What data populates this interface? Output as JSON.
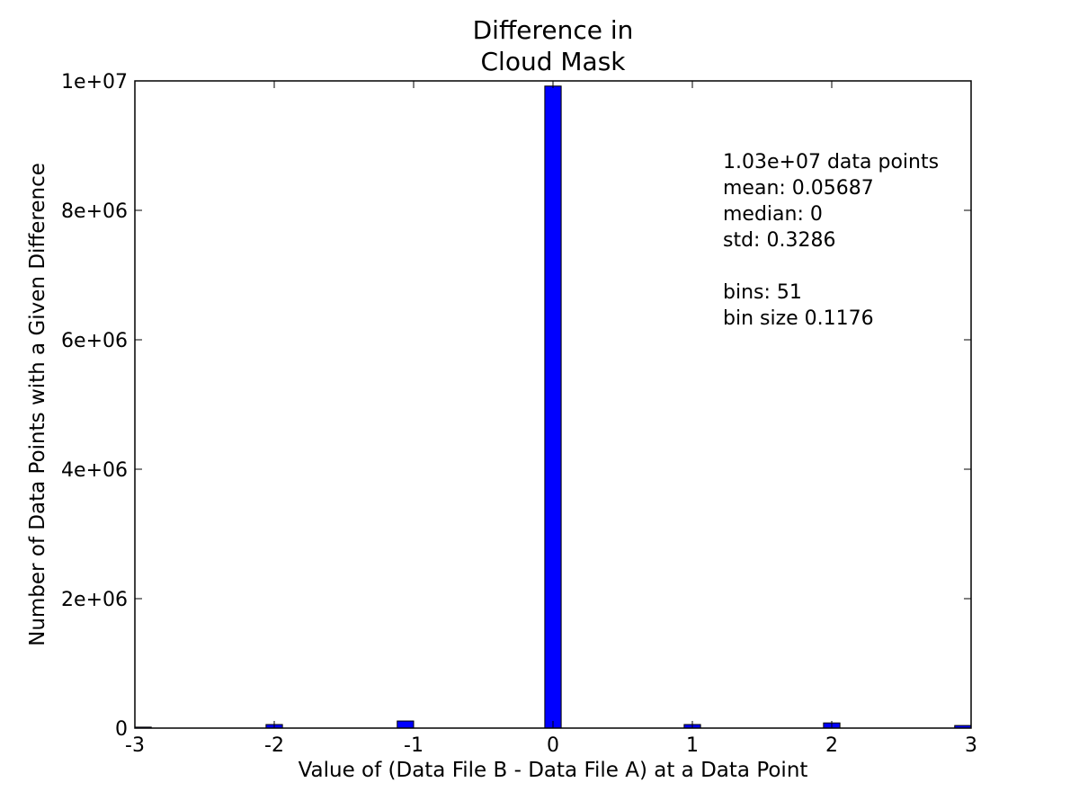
{
  "chart_data": {
    "type": "bar",
    "title_lines": [
      "Difference in",
      "Cloud Mask"
    ],
    "xlabel": "Value of (Data File B - Data File A) at a Data Point",
    "ylabel": "Number of Data Points with a Given Difference",
    "xlim": [
      -3,
      3
    ],
    "ylim": [
      0,
      10000000
    ],
    "xticks": [
      {
        "value": -3,
        "label": "-3"
      },
      {
        "value": -2,
        "label": "-2"
      },
      {
        "value": -1,
        "label": "-1"
      },
      {
        "value": 0,
        "label": "0"
      },
      {
        "value": 1,
        "label": "1"
      },
      {
        "value": 2,
        "label": "2"
      },
      {
        "value": 3,
        "label": "3"
      }
    ],
    "yticks": [
      {
        "value": 0,
        "label": "0"
      },
      {
        "value": 2000000,
        "label": "2e+06"
      },
      {
        "value": 4000000,
        "label": "4e+06"
      },
      {
        "value": 6000000,
        "label": "6e+06"
      },
      {
        "value": 8000000,
        "label": "8e+06"
      },
      {
        "value": 10000000,
        "label": "1e+07"
      }
    ],
    "bin_width": 0.1176,
    "bars": [
      {
        "x0": -3.0,
        "value": 15000
      },
      {
        "x0": -2.0588,
        "value": 55000
      },
      {
        "x0": -1.1176,
        "value": 110000
      },
      {
        "x0": -0.0588,
        "value": 9920000
      },
      {
        "x0": 0.9412,
        "value": 55000
      },
      {
        "x0": 1.9412,
        "value": 80000
      },
      {
        "x0": 2.8824,
        "value": 40000
      }
    ],
    "bar_color": "#0000ff",
    "grid": false,
    "annotation_lines": [
      "1.03e+07 data points",
      "mean: 0.05687",
      "median: 0",
      "std: 0.3286",
      "",
      "bins: 51",
      "bin size 0.1176"
    ]
  }
}
